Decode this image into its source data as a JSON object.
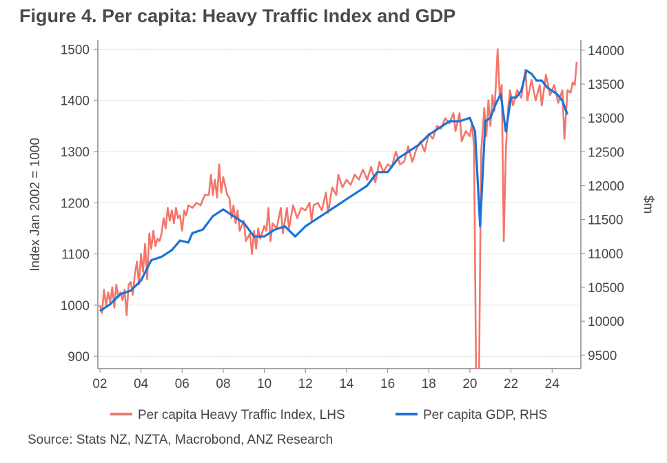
{
  "chart_data": {
    "type": "line",
    "title": "Figure 4. Per capita: Heavy Traffic Index and GDP",
    "source": "Source: Stats NZ, NZTA, Macrobond, ANZ Research",
    "xlabel": "",
    "ylabel": "Index Jan 2002 = 1000",
    "y2label": "$m",
    "xlim": [
      2001.9,
      2025.4
    ],
    "ylim": [
      876,
      1518
    ],
    "y2lim": [
      9300,
      14150
    ],
    "xticks": [
      2002,
      2004,
      2006,
      2008,
      2010,
      2012,
      2014,
      2016,
      2018,
      2020,
      2022,
      2024
    ],
    "xtick_labels": [
      "02",
      "04",
      "06",
      "08",
      "10",
      "12",
      "14",
      "16",
      "18",
      "20",
      "22",
      "24"
    ],
    "yticks": [
      900,
      1000,
      1100,
      1200,
      1300,
      1400,
      1500
    ],
    "y2ticks": [
      9500,
      10000,
      10500,
      11000,
      11500,
      12000,
      12500,
      13000,
      13500,
      14000
    ],
    "grid": true,
    "legend_position": "bottom",
    "series": [
      {
        "name": "Per capita Heavy Traffic Index, LHS",
        "axis": "left",
        "color": "#f4766a",
        "points": [
          [
            2002.0,
            1000
          ],
          [
            2002.1,
            985
          ],
          [
            2002.2,
            1030
          ],
          [
            2002.3,
            1000
          ],
          [
            2002.4,
            1025
          ],
          [
            2002.5,
            1005
          ],
          [
            2002.6,
            1035
          ],
          [
            2002.7,
            995
          ],
          [
            2002.8,
            1040
          ],
          [
            2002.9,
            1015
          ],
          [
            2003.0,
            1025
          ],
          [
            2003.1,
            1010
          ],
          [
            2003.2,
            1030
          ],
          [
            2003.3,
            980
          ],
          [
            2003.4,
            1040
          ],
          [
            2003.5,
            1045
          ],
          [
            2003.6,
            1020
          ],
          [
            2003.7,
            1060
          ],
          [
            2003.8,
            1085
          ],
          [
            2003.9,
            1040
          ],
          [
            2004.0,
            1100
          ],
          [
            2004.1,
            1065
          ],
          [
            2004.2,
            1120
          ],
          [
            2004.3,
            1050
          ],
          [
            2004.4,
            1140
          ],
          [
            2004.5,
            1110
          ],
          [
            2004.6,
            1145
          ],
          [
            2004.7,
            1115
          ],
          [
            2004.8,
            1130
          ],
          [
            2004.9,
            1125
          ],
          [
            2005.0,
            1140
          ],
          [
            2005.1,
            1170
          ],
          [
            2005.2,
            1150
          ],
          [
            2005.3,
            1190
          ],
          [
            2005.4,
            1165
          ],
          [
            2005.5,
            1185
          ],
          [
            2005.6,
            1160
          ],
          [
            2005.7,
            1190
          ],
          [
            2005.8,
            1170
          ],
          [
            2005.9,
            1175
          ],
          [
            2006.0,
            1145
          ],
          [
            2006.1,
            1185
          ],
          [
            2006.2,
            1175
          ],
          [
            2006.3,
            1195
          ],
          [
            2006.5,
            1190
          ],
          [
            2006.7,
            1200
          ],
          [
            2006.9,
            1195
          ],
          [
            2007.1,
            1215
          ],
          [
            2007.3,
            1215
          ],
          [
            2007.4,
            1255
          ],
          [
            2007.5,
            1215
          ],
          [
            2007.6,
            1245
          ],
          [
            2007.7,
            1210
          ],
          [
            2007.8,
            1275
          ],
          [
            2007.9,
            1220
          ],
          [
            2008.0,
            1250
          ],
          [
            2008.2,
            1215
          ],
          [
            2008.3,
            1210
          ],
          [
            2008.4,
            1170
          ],
          [
            2008.5,
            1195
          ],
          [
            2008.6,
            1160
          ],
          [
            2008.7,
            1185
          ],
          [
            2008.8,
            1145
          ],
          [
            2009.0,
            1165
          ],
          [
            2009.1,
            1125
          ],
          [
            2009.3,
            1140
          ],
          [
            2009.4,
            1100
          ],
          [
            2009.5,
            1145
          ],
          [
            2009.6,
            1110
          ],
          [
            2009.7,
            1150
          ],
          [
            2009.8,
            1130
          ],
          [
            2010.0,
            1155
          ],
          [
            2010.1,
            1145
          ],
          [
            2010.2,
            1190
          ],
          [
            2010.3,
            1125
          ],
          [
            2010.4,
            1160
          ],
          [
            2010.6,
            1150
          ],
          [
            2010.8,
            1190
          ],
          [
            2010.9,
            1140
          ],
          [
            2011.1,
            1190
          ],
          [
            2011.2,
            1150
          ],
          [
            2011.4,
            1195
          ],
          [
            2011.6,
            1170
          ],
          [
            2011.8,
            1190
          ],
          [
            2012.0,
            1185
          ],
          [
            2012.2,
            1200
          ],
          [
            2012.3,
            1165
          ],
          [
            2012.4,
            1195
          ],
          [
            2012.6,
            1200
          ],
          [
            2012.8,
            1185
          ],
          [
            2013.0,
            1220
          ],
          [
            2013.1,
            1180
          ],
          [
            2013.3,
            1230
          ],
          [
            2013.5,
            1215
          ],
          [
            2013.6,
            1255
          ],
          [
            2013.8,
            1230
          ],
          [
            2014.0,
            1245
          ],
          [
            2014.2,
            1235
          ],
          [
            2014.4,
            1255
          ],
          [
            2014.6,
            1245
          ],
          [
            2014.8,
            1265
          ],
          [
            2015.0,
            1245
          ],
          [
            2015.2,
            1270
          ],
          [
            2015.4,
            1240
          ],
          [
            2015.6,
            1280
          ],
          [
            2015.8,
            1260
          ],
          [
            2016.0,
            1275
          ],
          [
            2016.2,
            1270
          ],
          [
            2016.4,
            1300
          ],
          [
            2016.6,
            1275
          ],
          [
            2016.8,
            1280
          ],
          [
            2017.0,
            1310
          ],
          [
            2017.2,
            1280
          ],
          [
            2017.4,
            1305
          ],
          [
            2017.6,
            1320
          ],
          [
            2017.8,
            1300
          ],
          [
            2018.0,
            1335
          ],
          [
            2018.2,
            1325
          ],
          [
            2018.4,
            1350
          ],
          [
            2018.6,
            1345
          ],
          [
            2018.8,
            1365
          ],
          [
            2019.0,
            1355
          ],
          [
            2019.2,
            1375
          ],
          [
            2019.3,
            1340
          ],
          [
            2019.5,
            1375
          ],
          [
            2019.6,
            1320
          ],
          [
            2019.8,
            1340
          ],
          [
            2020.0,
            1330
          ],
          [
            2020.1,
            1355
          ],
          [
            2020.2,
            1310
          ],
          [
            2020.3,
            870
          ],
          [
            2020.45,
            870
          ],
          [
            2020.55,
            1300
          ],
          [
            2020.7,
            1385
          ],
          [
            2020.8,
            1330
          ],
          [
            2020.9,
            1400
          ],
          [
            2021.0,
            1350
          ],
          [
            2021.1,
            1410
          ],
          [
            2021.2,
            1380
          ],
          [
            2021.35,
            1500
          ],
          [
            2021.45,
            1410
          ],
          [
            2021.55,
            1430
          ],
          [
            2021.65,
            1125
          ],
          [
            2021.75,
            1300
          ],
          [
            2021.85,
            1380
          ],
          [
            2021.95,
            1420
          ],
          [
            2022.1,
            1390
          ],
          [
            2022.3,
            1420
          ],
          [
            2022.5,
            1405
          ],
          [
            2022.7,
            1460
          ],
          [
            2022.8,
            1400
          ],
          [
            2023.0,
            1440
          ],
          [
            2023.2,
            1400
          ],
          [
            2023.4,
            1430
          ],
          [
            2023.5,
            1390
          ],
          [
            2023.7,
            1450
          ],
          [
            2023.9,
            1410
          ],
          [
            2024.1,
            1430
          ],
          [
            2024.3,
            1395
          ],
          [
            2024.5,
            1420
          ],
          [
            2024.6,
            1325
          ],
          [
            2024.75,
            1420
          ],
          [
            2024.9,
            1415
          ],
          [
            2025.0,
            1435
          ],
          [
            2025.1,
            1430
          ],
          [
            2025.2,
            1475
          ]
        ]
      },
      {
        "name": "Per capita GDP, RHS",
        "axis": "right",
        "color": "#1a73d9",
        "points": [
          [
            2002.0,
            10150
          ],
          [
            2002.5,
            10250
          ],
          [
            2003.0,
            10400
          ],
          [
            2003.5,
            10450
          ],
          [
            2004.0,
            10600
          ],
          [
            2004.5,
            10900
          ],
          [
            2005.0,
            10950
          ],
          [
            2005.5,
            11050
          ],
          [
            2005.9,
            11190
          ],
          [
            2006.3,
            11160
          ],
          [
            2006.5,
            11300
          ],
          [
            2007.0,
            11350
          ],
          [
            2007.5,
            11550
          ],
          [
            2008.0,
            11650
          ],
          [
            2008.5,
            11550
          ],
          [
            2009.0,
            11450
          ],
          [
            2009.5,
            11250
          ],
          [
            2010.0,
            11250
          ],
          [
            2010.5,
            11350
          ],
          [
            2011.0,
            11400
          ],
          [
            2011.5,
            11250
          ],
          [
            2012.0,
            11400
          ],
          [
            2012.5,
            11500
          ],
          [
            2013.0,
            11600
          ],
          [
            2013.5,
            11700
          ],
          [
            2014.0,
            11800
          ],
          [
            2014.5,
            11900
          ],
          [
            2015.0,
            12000
          ],
          [
            2015.5,
            12200
          ],
          [
            2016.0,
            12200
          ],
          [
            2016.5,
            12400
          ],
          [
            2017.0,
            12500
          ],
          [
            2017.5,
            12600
          ],
          [
            2018.0,
            12750
          ],
          [
            2018.5,
            12850
          ],
          [
            2019.0,
            12950
          ],
          [
            2019.5,
            12950
          ],
          [
            2020.0,
            13000
          ],
          [
            2020.25,
            12800
          ],
          [
            2020.5,
            11400
          ],
          [
            2020.75,
            12950
          ],
          [
            2021.0,
            13000
          ],
          [
            2021.25,
            13200
          ],
          [
            2021.5,
            13350
          ],
          [
            2021.75,
            12800
          ],
          [
            2022.0,
            13300
          ],
          [
            2022.25,
            13300
          ],
          [
            2022.5,
            13400
          ],
          [
            2022.75,
            13700
          ],
          [
            2023.0,
            13650
          ],
          [
            2023.25,
            13550
          ],
          [
            2023.5,
            13550
          ],
          [
            2023.75,
            13450
          ],
          [
            2024.0,
            13400
          ],
          [
            2024.25,
            13350
          ],
          [
            2024.5,
            13250
          ],
          [
            2024.75,
            13050
          ]
        ]
      }
    ]
  }
}
